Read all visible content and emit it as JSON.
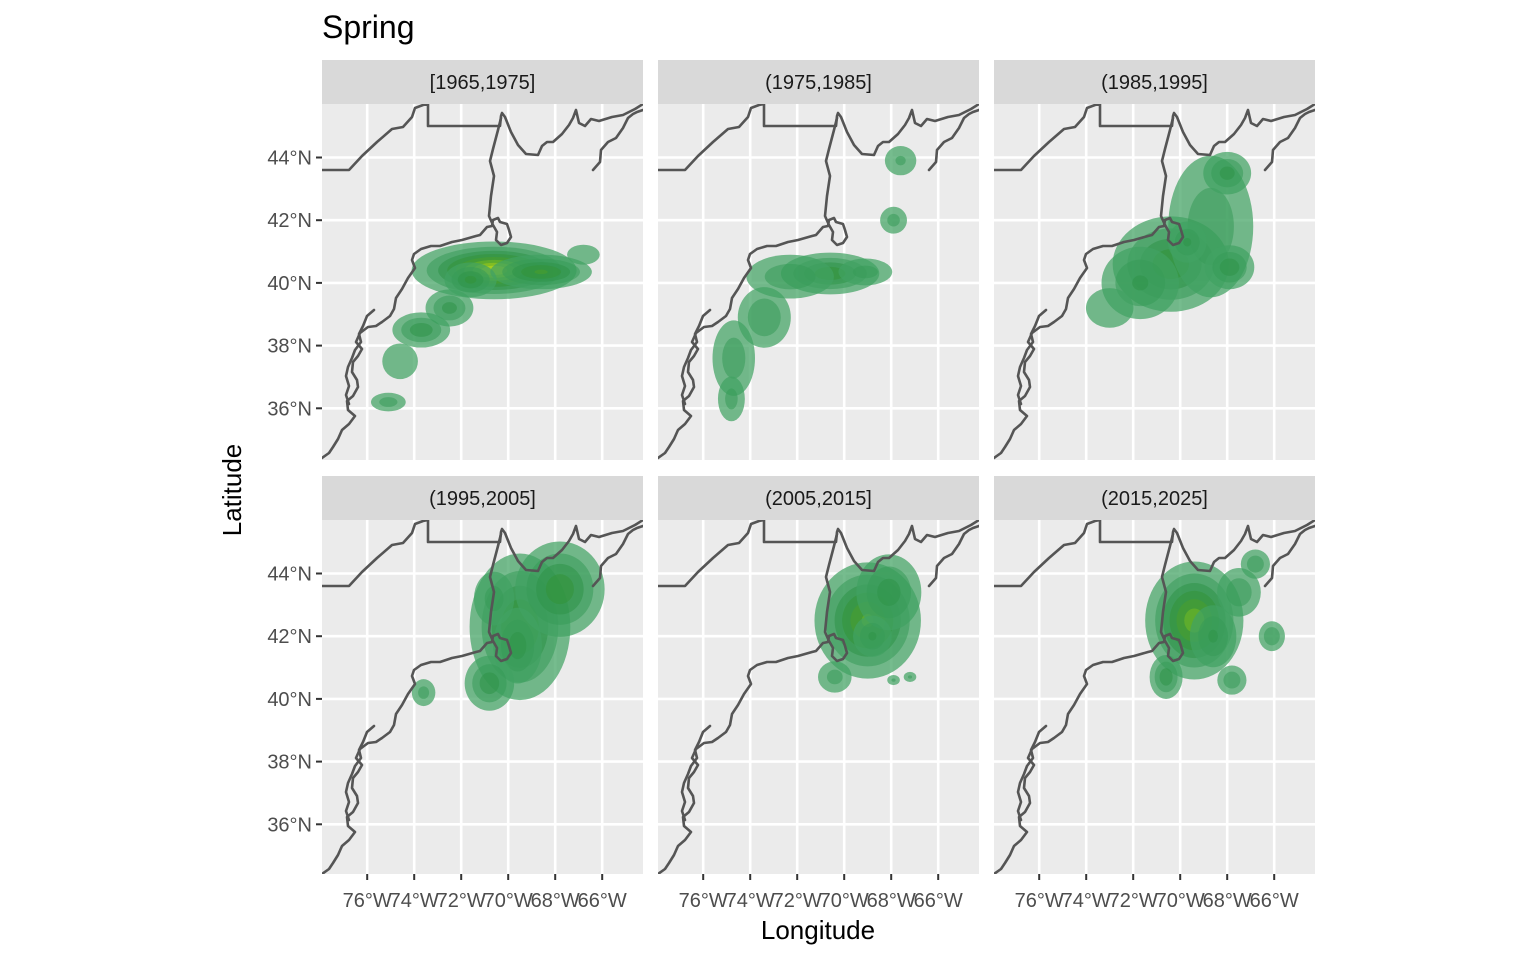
{
  "chart_data": {
    "type": "heatmap",
    "title": "Spring",
    "xlabel": "Longitude",
    "ylabel": "Latitude",
    "xlim": [
      -77.9,
      -64.5
    ],
    "ylim": [
      34.5,
      46.0
    ],
    "x_ticks": [
      -76,
      -74,
      -72,
      -70,
      -68,
      -66
    ],
    "x_tick_labels": [
      "76°W",
      "74°W",
      "72°W",
      "70°W",
      "68°W",
      "66°W"
    ],
    "y_ticks": [
      36,
      38,
      40,
      42,
      44
    ],
    "y_tick_labels": [
      "36°N",
      "38°N",
      "40°N",
      "42°N",
      "44°N"
    ],
    "grid": true,
    "legend": "none",
    "colors": {
      "low": "#41a263",
      "mid": "#2e9140",
      "high": "#b5d81c",
      "coast": "#555555",
      "panel_bg": "#ebebeb",
      "strip_bg": "#d9d9d9"
    },
    "panels": [
      {
        "label": "[1965,1975]",
        "density": [
          {
            "lon": -70.6,
            "lat": 40.4,
            "sx": 1.6,
            "sy": 0.42,
            "w": 1.0
          },
          {
            "lon": -68.6,
            "lat": 40.35,
            "sx": 1.1,
            "sy": 0.28,
            "w": 0.62
          },
          {
            "lon": -71.6,
            "lat": 40.1,
            "sx": 0.6,
            "sy": 0.3,
            "w": 0.5
          },
          {
            "lon": -72.5,
            "lat": 39.2,
            "sx": 0.6,
            "sy": 0.35,
            "w": 0.38
          },
          {
            "lon": -73.7,
            "lat": 38.5,
            "sx": 0.7,
            "sy": 0.32,
            "w": 0.42
          },
          {
            "lon": -74.6,
            "lat": 37.5,
            "sx": 0.6,
            "sy": 0.45,
            "w": 0.2
          },
          {
            "lon": -75.1,
            "lat": 36.2,
            "sx": 0.5,
            "sy": 0.2,
            "w": 0.27
          },
          {
            "lon": -66.8,
            "lat": 40.9,
            "sx": 0.55,
            "sy": 0.25,
            "w": 0.2
          }
        ]
      },
      {
        "label": "(1975,1985]",
        "density": [
          {
            "lon": -70.6,
            "lat": 40.3,
            "sx": 1.1,
            "sy": 0.35,
            "w": 0.55
          },
          {
            "lon": -72.3,
            "lat": 40.2,
            "sx": 1.2,
            "sy": 0.45,
            "w": 0.3
          },
          {
            "lon": -73.4,
            "lat": 38.9,
            "sx": 0.7,
            "sy": 0.6,
            "w": 0.33
          },
          {
            "lon": -74.7,
            "lat": 37.6,
            "sx": 0.6,
            "sy": 0.8,
            "w": 0.28
          },
          {
            "lon": -74.8,
            "lat": 36.3,
            "sx": 0.4,
            "sy": 0.5,
            "w": 0.25
          },
          {
            "lon": -69.1,
            "lat": 40.35,
            "sx": 0.8,
            "sy": 0.3,
            "w": 0.25
          },
          {
            "lon": -67.9,
            "lat": 42.0,
            "sx": 0.4,
            "sy": 0.3,
            "w": 0.25
          },
          {
            "lon": -67.6,
            "lat": 43.9,
            "sx": 0.5,
            "sy": 0.35,
            "w": 0.22
          }
        ]
      },
      {
        "label": "(1985,1995]",
        "density": [
          {
            "lon": -70.4,
            "lat": 40.6,
            "sx": 1.3,
            "sy": 0.8,
            "w": 0.55
          },
          {
            "lon": -71.7,
            "lat": 40.0,
            "sx": 1.0,
            "sy": 0.7,
            "w": 0.35
          },
          {
            "lon": -68.7,
            "lat": 41.8,
            "sx": 1.2,
            "sy": 1.5,
            "w": 0.28
          },
          {
            "lon": -67.9,
            "lat": 40.5,
            "sx": 0.6,
            "sy": 0.4,
            "w": 0.42
          },
          {
            "lon": -68.0,
            "lat": 43.5,
            "sx": 0.6,
            "sy": 0.4,
            "w": 0.38
          },
          {
            "lon": -69.7,
            "lat": 41.3,
            "sx": 0.5,
            "sy": 0.4,
            "w": 0.35
          },
          {
            "lon": -73.0,
            "lat": 39.2,
            "sx": 0.8,
            "sy": 0.5,
            "w": 0.2
          }
        ]
      },
      {
        "label": "(1995,2005]",
        "density": [
          {
            "lon": -69.5,
            "lat": 42.3,
            "sx": 1.1,
            "sy": 1.2,
            "w": 0.6
          },
          {
            "lon": -67.8,
            "lat": 43.5,
            "sx": 1.0,
            "sy": 0.8,
            "w": 0.55
          },
          {
            "lon": -69.6,
            "lat": 41.7,
            "sx": 0.6,
            "sy": 0.7,
            "w": 0.4
          },
          {
            "lon": -70.8,
            "lat": 40.5,
            "sx": 0.6,
            "sy": 0.5,
            "w": 0.42
          },
          {
            "lon": -73.6,
            "lat": 40.2,
            "sx": 0.35,
            "sy": 0.3,
            "w": 0.25
          },
          {
            "lon": -70.6,
            "lat": 43.2,
            "sx": 0.6,
            "sy": 0.6,
            "w": 0.25
          }
        ]
      },
      {
        "label": "(2005,2015]",
        "density": [
          {
            "lon": -69.0,
            "lat": 42.5,
            "sx": 1.1,
            "sy": 0.9,
            "w": 0.75
          },
          {
            "lon": -68.1,
            "lat": 43.4,
            "sx": 0.8,
            "sy": 0.7,
            "w": 0.4
          },
          {
            "lon": -68.8,
            "lat": 42.0,
            "sx": 0.5,
            "sy": 0.4,
            "w": 0.35
          },
          {
            "lon": -70.4,
            "lat": 40.7,
            "sx": 0.5,
            "sy": 0.35,
            "w": 0.25
          },
          {
            "lon": -67.9,
            "lat": 40.6,
            "sx": 0.2,
            "sy": 0.12,
            "w": 0.22
          },
          {
            "lon": -67.2,
            "lat": 40.7,
            "sx": 0.2,
            "sy": 0.12,
            "w": 0.22
          }
        ]
      },
      {
        "label": "(2015,2025]",
        "density": [
          {
            "lon": -69.4,
            "lat": 42.5,
            "sx": 1.0,
            "sy": 0.9,
            "w": 0.8
          },
          {
            "lon": -68.6,
            "lat": 42.0,
            "sx": 0.6,
            "sy": 0.6,
            "w": 0.35
          },
          {
            "lon": -67.5,
            "lat": 43.4,
            "sx": 0.6,
            "sy": 0.5,
            "w": 0.3
          },
          {
            "lon": -70.6,
            "lat": 40.7,
            "sx": 0.4,
            "sy": 0.4,
            "w": 0.42
          },
          {
            "lon": -67.8,
            "lat": 40.6,
            "sx": 0.4,
            "sy": 0.3,
            "w": 0.3
          },
          {
            "lon": -66.1,
            "lat": 42.0,
            "sx": 0.35,
            "sy": 0.3,
            "w": 0.32
          },
          {
            "lon": -66.8,
            "lat": 44.3,
            "sx": 0.4,
            "sy": 0.3,
            "w": 0.3
          }
        ]
      }
    ]
  }
}
